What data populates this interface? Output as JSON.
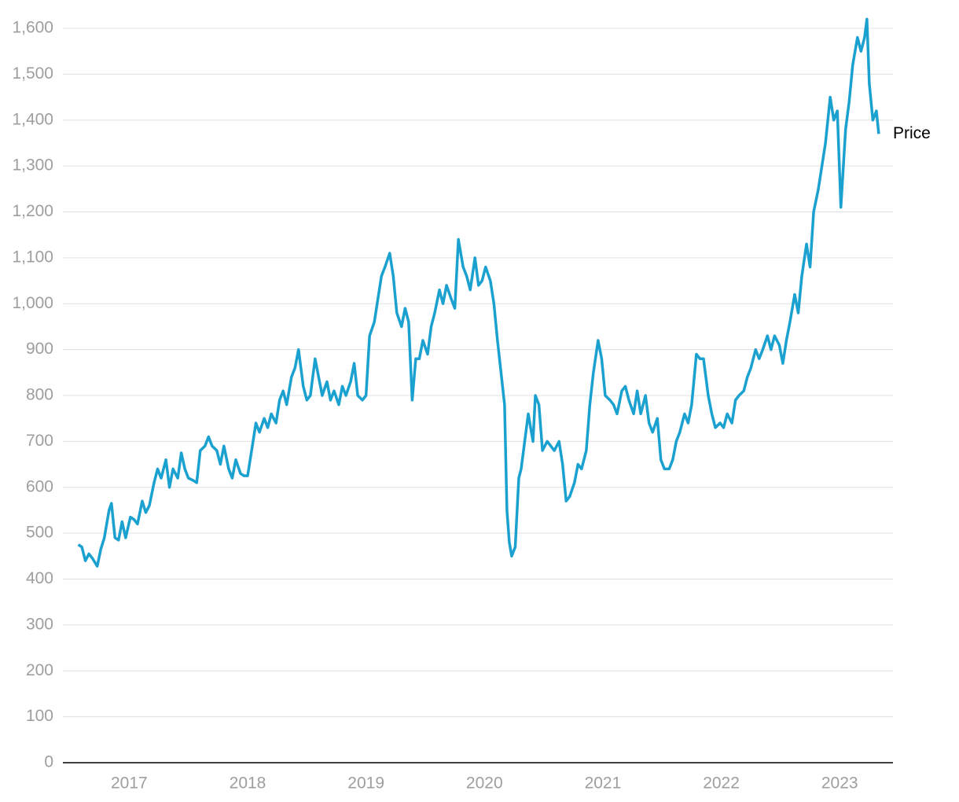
{
  "chart_data": {
    "type": "line",
    "x": [
      2016.57,
      2016.6,
      2016.63,
      2016.66,
      2016.69,
      2016.73,
      2016.76,
      2016.79,
      2016.83,
      2016.85,
      2016.88,
      2016.91,
      2016.94,
      2016.97,
      2017.01,
      2017.04,
      2017.07,
      2017.11,
      2017.14,
      2017.17,
      2017.21,
      2017.24,
      2017.27,
      2017.31,
      2017.34,
      2017.37,
      2017.41,
      2017.44,
      2017.47,
      2017.5,
      2017.54,
      2017.57,
      2017.6,
      2017.64,
      2017.67,
      2017.7,
      2017.74,
      2017.77,
      2017.8,
      2017.84,
      2017.87,
      2017.9,
      2017.94,
      2017.97,
      2018.0,
      2018.04,
      2018.07,
      2018.1,
      2018.14,
      2018.17,
      2018.2,
      2018.24,
      2018.27,
      2018.3,
      2018.33,
      2018.37,
      2018.4,
      2018.43,
      2018.47,
      2018.5,
      2018.53,
      2018.57,
      2018.6,
      2018.63,
      2018.67,
      2018.7,
      2018.73,
      2018.77,
      2018.8,
      2018.83,
      2018.87,
      2018.9,
      2018.93,
      2018.97,
      2019.0,
      2019.03,
      2019.07,
      2019.1,
      2019.13,
      2019.16,
      2019.2,
      2019.23,
      2019.26,
      2019.3,
      2019.33,
      2019.36,
      2019.39,
      2019.42,
      2019.45,
      2019.48,
      2019.52,
      2019.55,
      2019.58,
      2019.62,
      2019.65,
      2019.68,
      2019.72,
      2019.75,
      2019.78,
      2019.82,
      2019.85,
      2019.88,
      2019.92,
      2019.95,
      2019.98,
      2020.01,
      2020.05,
      2020.08,
      2020.11,
      2020.14,
      2020.17,
      2020.19,
      2020.21,
      2020.23,
      2020.26,
      2020.29,
      2020.31,
      2020.34,
      2020.37,
      2020.41,
      2020.43,
      2020.46,
      2020.49,
      2020.53,
      2020.56,
      2020.59,
      2020.63,
      2020.66,
      2020.69,
      2020.72,
      2020.76,
      2020.79,
      2020.82,
      2020.86,
      2020.89,
      2020.92,
      2020.96,
      2020.99,
      2021.02,
      2021.06,
      2021.09,
      2021.12,
      2021.16,
      2021.19,
      2021.22,
      2021.26,
      2021.29,
      2021.32,
      2021.36,
      2021.39,
      2021.42,
      2021.46,
      2021.49,
      2021.52,
      2021.56,
      2021.59,
      2021.62,
      2021.65,
      2021.69,
      2021.72,
      2021.75,
      2021.79,
      2021.82,
      2021.85,
      2021.89,
      2021.92,
      2021.95,
      2021.99,
      2022.02,
      2022.05,
      2022.09,
      2022.12,
      2022.15,
      2022.19,
      2022.22,
      2022.25,
      2022.29,
      2022.32,
      2022.35,
      2022.39,
      2022.42,
      2022.45,
      2022.49,
      2022.52,
      2022.55,
      2022.58,
      2022.62,
      2022.65,
      2022.68,
      2022.72,
      2022.75,
      2022.78,
      2022.82,
      2022.85,
      2022.88,
      2022.92,
      2022.95,
      2022.98,
      2023.01,
      2023.05,
      2023.08,
      2023.11,
      2023.15,
      2023.18,
      2023.21,
      2023.23,
      2023.25,
      2023.28,
      2023.31,
      2023.33
    ],
    "series": [
      {
        "name": "Price",
        "color": "#1ba1d0",
        "values": [
          475,
          470,
          440,
          455,
          445,
          428,
          465,
          490,
          550,
          565,
          490,
          485,
          525,
          490,
          535,
          530,
          520,
          570,
          545,
          560,
          610,
          640,
          620,
          660,
          600,
          640,
          620,
          675,
          640,
          620,
          615,
          610,
          680,
          690,
          710,
          690,
          680,
          650,
          690,
          640,
          620,
          660,
          630,
          625,
          625,
          690,
          740,
          720,
          750,
          730,
          760,
          740,
          790,
          810,
          780,
          840,
          860,
          900,
          820,
          790,
          800,
          880,
          840,
          800,
          830,
          790,
          810,
          780,
          820,
          800,
          830,
          870,
          800,
          790,
          800,
          930,
          960,
          1010,
          1060,
          1080,
          1110,
          1060,
          980,
          950,
          990,
          960,
          790,
          880,
          880,
          920,
          890,
          950,
          980,
          1030,
          1000,
          1040,
          1010,
          990,
          1140,
          1080,
          1060,
          1030,
          1100,
          1040,
          1050,
          1080,
          1050,
          1000,
          920,
          850,
          780,
          550,
          480,
          450,
          470,
          620,
          640,
          700,
          760,
          700,
          800,
          780,
          680,
          700,
          690,
          680,
          700,
          650,
          570,
          580,
          610,
          650,
          640,
          680,
          780,
          850,
          920,
          880,
          800,
          790,
          780,
          760,
          810,
          820,
          790,
          760,
          810,
          760,
          800,
          740,
          720,
          750,
          660,
          640,
          640,
          660,
          700,
          720,
          760,
          740,
          780,
          890,
          880,
          880,
          800,
          760,
          730,
          740,
          730,
          760,
          740,
          790,
          800,
          810,
          840,
          860,
          900,
          880,
          900,
          930,
          900,
          930,
          910,
          870,
          920,
          960,
          1020,
          980,
          1060,
          1130,
          1080,
          1200,
          1250,
          1300,
          1350,
          1450,
          1400,
          1420,
          1210,
          1380,
          1440,
          1520,
          1580,
          1550,
          1580,
          1620,
          1480,
          1400,
          1420,
          1370
        ]
      }
    ],
    "xlim": [
      2016.44,
      2023.45
    ],
    "xticks": [
      2017,
      2018,
      2019,
      2020,
      2021,
      2022,
      2023
    ],
    "ylim": [
      0,
      1600
    ],
    "yticks": [
      0,
      100,
      200,
      300,
      400,
      500,
      600,
      700,
      800,
      900,
      {
        "value": 1000,
        "label": "1,000"
      },
      {
        "value": 1100,
        "label": "1,100"
      },
      {
        "value": 1200,
        "label": "1,200"
      },
      {
        "value": 1300,
        "label": "1,300"
      },
      {
        "value": 1400,
        "label": "1,400"
      },
      {
        "value": 1500,
        "label": "1,500"
      },
      {
        "value": 1600,
        "label": "1,600"
      }
    ],
    "grid": true
  }
}
